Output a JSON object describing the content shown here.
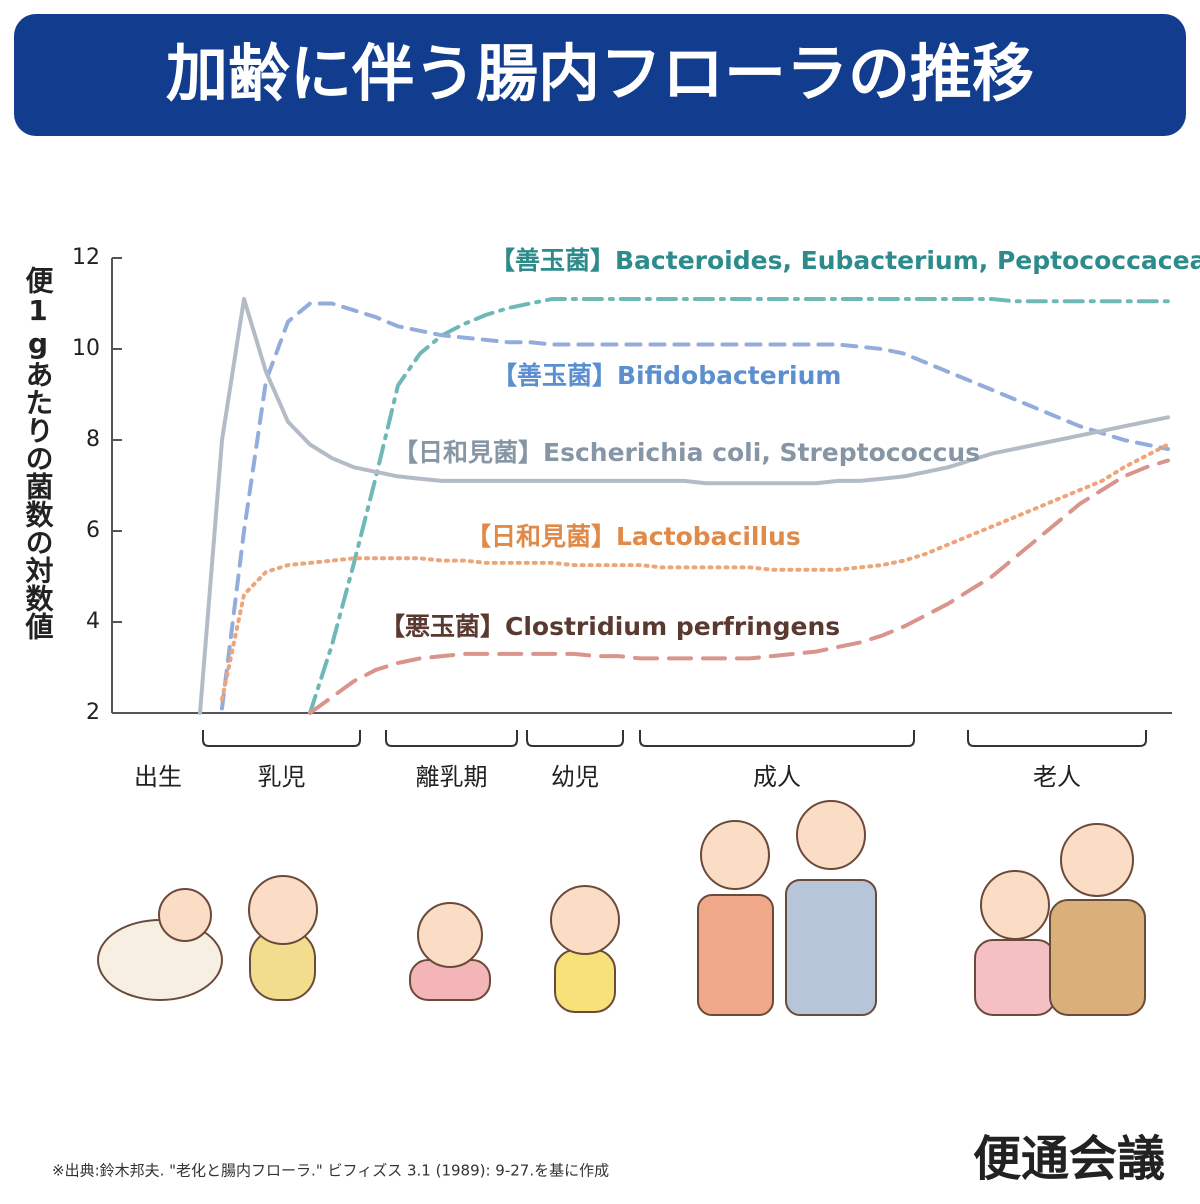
{
  "header": {
    "title": "加齢に伴う腸内フローラの推移"
  },
  "chart_data": {
    "type": "line",
    "y_label": "便1gあたりの菌数の対数値",
    "ylim": [
      2,
      12
    ],
    "yticks": [
      2,
      4,
      6,
      8,
      10,
      12
    ],
    "stages": [
      "出生",
      "乳児",
      "離乳期",
      "幼児",
      "成人",
      "老人"
    ],
    "series": [
      {
        "name": "【善玉菌】Bacteroides, Eubacterium, Peptococcaceae",
        "color": "#6fb8b8",
        "style": "dashdot",
        "values": [
          null,
          null,
          null,
          null,
          null,
          null,
          null,
          null,
          null,
          2,
          3.5,
          5.3,
          7.2,
          9.2,
          9.9,
          10.3,
          10.55,
          10.75,
          10.9,
          11,
          11.1,
          11.1,
          11.1,
          11.1,
          11.1,
          11.1,
          11.1,
          11.1,
          11.1,
          11.1,
          11.1,
          11.1,
          11.1,
          11.1,
          11.1,
          11.1,
          11.1,
          11.1,
          11.1,
          11.1,
          11.1,
          11.05,
          11.05,
          11.05,
          11.05,
          11.05,
          11.05,
          11.05,
          11.05
        ]
      },
      {
        "name": "【善玉菌】Bifidobacterium",
        "color": "#93acdc",
        "style": "dash",
        "values": [
          null,
          null,
          null,
          null,
          null,
          2.1,
          6,
          9.3,
          10.6,
          11,
          11,
          10.85,
          10.7,
          10.5,
          10.4,
          10.3,
          10.25,
          10.2,
          10.15,
          10.15,
          10.1,
          10.1,
          10.1,
          10.1,
          10.1,
          10.1,
          10.1,
          10.1,
          10.1,
          10.1,
          10.1,
          10.1,
          10.1,
          10.1,
          10.05,
          10,
          9.9,
          9.7,
          9.5,
          9.3,
          9.1,
          8.9,
          8.7,
          8.5,
          8.3,
          8.15,
          8,
          7.9,
          7.8
        ]
      },
      {
        "name": "【日和見菌】Escherichia coli, Streptococcus",
        "color": "#b3bcc6",
        "style": "solid",
        "values": [
          null,
          null,
          null,
          null,
          2,
          8,
          11.1,
          9.5,
          8.4,
          7.9,
          7.6,
          7.4,
          7.3,
          7.2,
          7.15,
          7.1,
          7.1,
          7.1,
          7.1,
          7.1,
          7.1,
          7.1,
          7.1,
          7.1,
          7.1,
          7.1,
          7.1,
          7.05,
          7.05,
          7.05,
          7.05,
          7.05,
          7.05,
          7.1,
          7.1,
          7.15,
          7.2,
          7.3,
          7.4,
          7.55,
          7.7,
          7.8,
          7.9,
          8,
          8.1,
          8.2,
          8.3,
          8.4,
          8.5
        ]
      },
      {
        "name": "【日和見菌】Lactobacillus",
        "color": "#eda57a",
        "style": "dot",
        "values": [
          null,
          null,
          null,
          null,
          null,
          2.3,
          4.6,
          5.1,
          5.25,
          5.3,
          5.35,
          5.4,
          5.4,
          5.4,
          5.4,
          5.35,
          5.35,
          5.3,
          5.3,
          5.3,
          5.3,
          5.25,
          5.25,
          5.25,
          5.25,
          5.2,
          5.2,
          5.2,
          5.2,
          5.2,
          5.15,
          5.15,
          5.15,
          5.15,
          5.2,
          5.25,
          5.35,
          5.5,
          5.7,
          5.9,
          6.1,
          6.3,
          6.5,
          6.7,
          6.9,
          7.1,
          7.4,
          7.65,
          7.9
        ]
      },
      {
        "name": "【悪玉菌】Clostridium perfringens",
        "color": "#d9948c",
        "style": "longdash",
        "values": [
          null,
          null,
          null,
          null,
          null,
          null,
          null,
          null,
          null,
          2,
          2.35,
          2.7,
          2.95,
          3.1,
          3.2,
          3.25,
          3.3,
          3.3,
          3.3,
          3.3,
          3.3,
          3.3,
          3.25,
          3.25,
          3.2,
          3.2,
          3.2,
          3.2,
          3.2,
          3.2,
          3.25,
          3.3,
          3.35,
          3.45,
          3.55,
          3.7,
          3.9,
          4.15,
          4.4,
          4.7,
          5,
          5.4,
          5.8,
          6.2,
          6.6,
          6.9,
          7.2,
          7.4,
          7.55
        ]
      }
    ]
  },
  "footer": {
    "source": "※出典:鈴木邦夫. \"老化と腸内フローラ.\" ビフィズス 3.1 (1989): 9-27.を基に作成",
    "logo": "便通会議"
  }
}
